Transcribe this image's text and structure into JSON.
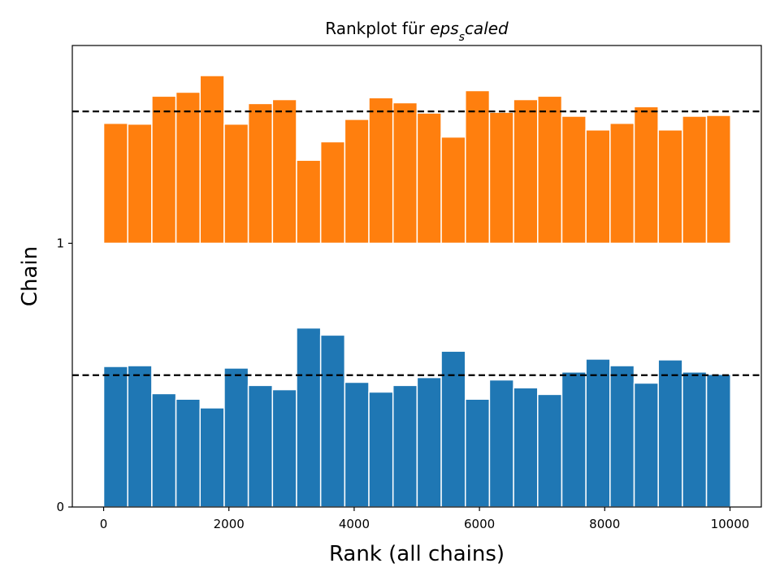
{
  "chart_data": {
    "type": "bar",
    "title_prefix": "Rankplot für ",
    "title_base": "eps",
    "title_sub": "s",
    "title_suffix": "caled",
    "xlabel": "Rank (all chains)",
    "ylabel": "Chain",
    "xlim": [
      -500,
      10500
    ],
    "ylim": [
      0,
      1.75
    ],
    "x_ticks": [
      0,
      2000,
      4000,
      6000,
      8000,
      10000
    ],
    "y_ticks": [
      0,
      1
    ],
    "bin_width": 385,
    "bin_starts": [
      0,
      385,
      770,
      1155,
      1540,
      1925,
      2310,
      2695,
      3080,
      3465,
      3850,
      4235,
      4620,
      5005,
      5390,
      5775,
      6160,
      6545,
      6930,
      7315,
      7700,
      8085,
      8470,
      8855,
      9240,
      9625
    ],
    "uniform_reference": 0.5,
    "series": [
      {
        "chain": 0,
        "color": "#1f77b4",
        "values": [
          0.533,
          0.536,
          0.43,
          0.409,
          0.376,
          0.527,
          0.461,
          0.445,
          0.679,
          0.652,
          0.473,
          0.436,
          0.461,
          0.491,
          0.591,
          0.409,
          0.482,
          0.452,
          0.427,
          0.512,
          0.561,
          0.536,
          0.47,
          0.558,
          0.512,
          0.503
        ]
      },
      {
        "chain": 1,
        "color": "#ff7f0e",
        "values": [
          0.455,
          0.452,
          0.558,
          0.573,
          0.636,
          0.452,
          0.53,
          0.545,
          0.315,
          0.385,
          0.47,
          0.552,
          0.533,
          0.494,
          0.403,
          0.579,
          0.497,
          0.545,
          0.558,
          0.482,
          0.43,
          0.455,
          0.518,
          0.43,
          0.482,
          0.485
        ]
      }
    ]
  }
}
